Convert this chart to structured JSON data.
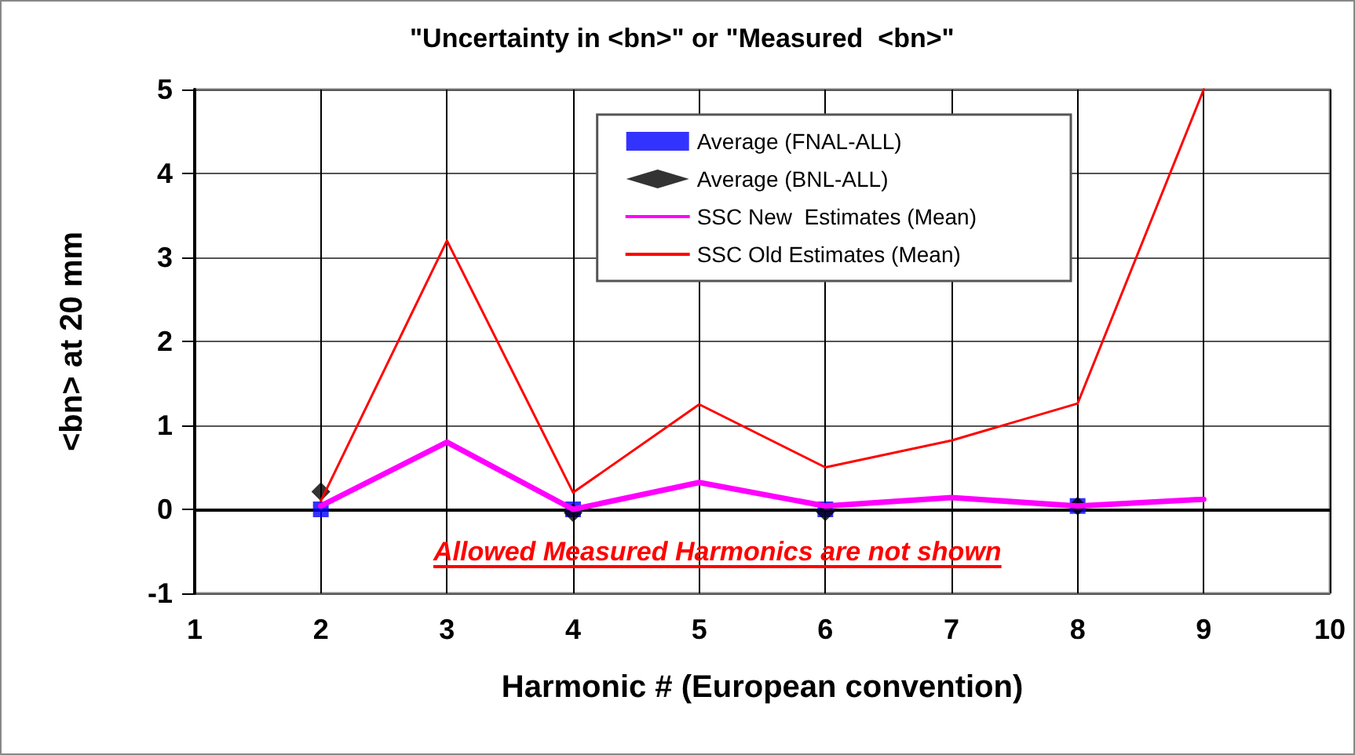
{
  "chart_data": {
    "type": "line",
    "title": "\"Uncertainty in <bn>\" or \"Measured  <bn>\"",
    "xlabel": "Harmonic # (European convention)",
    "ylabel": "<bn> at 20 mm",
    "xlim": [
      1,
      10
    ],
    "xticks": [
      1,
      2,
      3,
      4,
      5,
      6,
      7,
      8,
      9,
      10
    ],
    "ylim": [
      -1,
      5
    ],
    "yticks": [
      -1,
      0,
      1,
      2,
      3,
      4,
      5
    ],
    "grid": true,
    "legend": "top right",
    "annotations": [
      "Allowed Measured Harmonics are not shown"
    ],
    "series": [
      {
        "name": "Average (FNAL-ALL)",
        "type": "scatter",
        "marker": "square",
        "color": "#0000ff",
        "x": [
          2,
          4,
          6,
          8
        ],
        "values": [
          0,
          0,
          0,
          0.04
        ]
      },
      {
        "name": "Average (BNL-ALL)",
        "type": "scatter",
        "marker": "diamond",
        "color": "#000000",
        "x": [
          2,
          4,
          6,
          8
        ],
        "values": [
          0.21,
          -0.04,
          -0.03,
          0.04
        ]
      },
      {
        "name": "SSC New  Estimates (Mean)",
        "marker": "none",
        "color": "#ff00ff",
        "x": [
          2,
          3,
          4,
          5,
          6,
          7,
          8,
          9
        ],
        "values": [
          0.04,
          0.8,
          0,
          0.32,
          0.04,
          0.14,
          0.04,
          0.12
        ]
      },
      {
        "name": "SSC Old Estimates (Mean)",
        "marker": "none",
        "color": "#ff0000",
        "x": [
          2,
          3,
          4,
          5,
          6,
          7,
          8,
          9
        ],
        "values": [
          0.1,
          3.2,
          0.2,
          1.25,
          0.5,
          0.82,
          1.26,
          5
        ]
      }
    ]
  }
}
